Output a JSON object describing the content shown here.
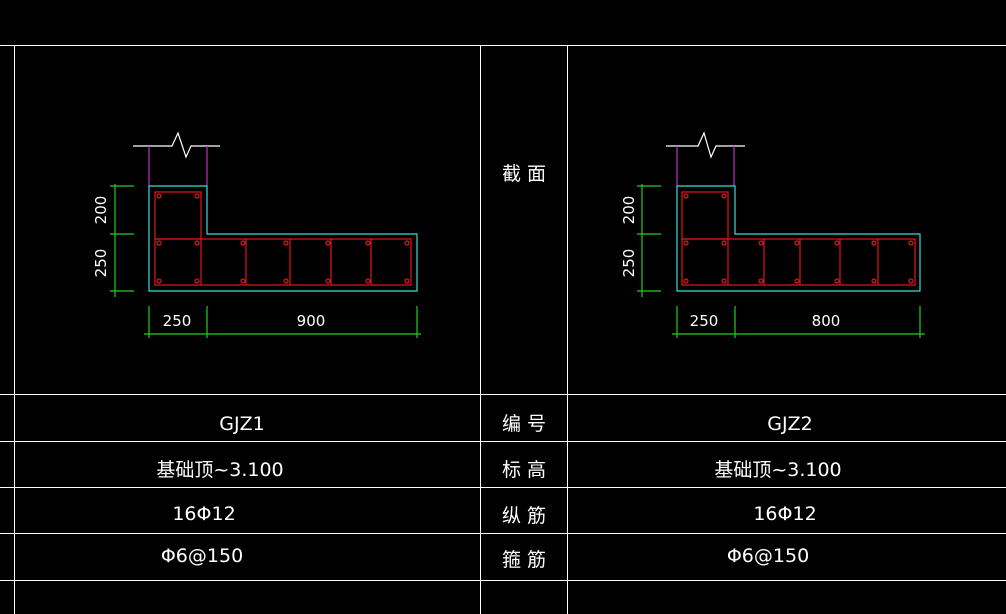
{
  "labels": {
    "section": "截 面",
    "id": "编 号",
    "elevation": "标 高",
    "longitudinal_rebar": "纵 筋",
    "stirrup": "箍 筋"
  },
  "columns": [
    {
      "id": "GJZ1",
      "elevation": "基础顶~3.100",
      "longitudinal_rebar": "16Φ12",
      "stirrup": "Φ6@150",
      "dims": {
        "top_height": "200",
        "bottom_height": "250",
        "column_width": "250",
        "flange_length": "900"
      }
    },
    {
      "id": "GJZ2",
      "elevation": "基础顶~3.100",
      "longitudinal_rebar": "16Φ12",
      "stirrup": "Φ6@150",
      "dims": {
        "top_height": "200",
        "bottom_height": "250",
        "column_width": "250",
        "flange_length": "800"
      }
    }
  ],
  "colors": {
    "background": "#000000",
    "table_lines": "#ffffff",
    "outline": "#3fd9d9",
    "rebar": "#e01818",
    "dimension": "#20d020",
    "wall": "#c030c0"
  }
}
